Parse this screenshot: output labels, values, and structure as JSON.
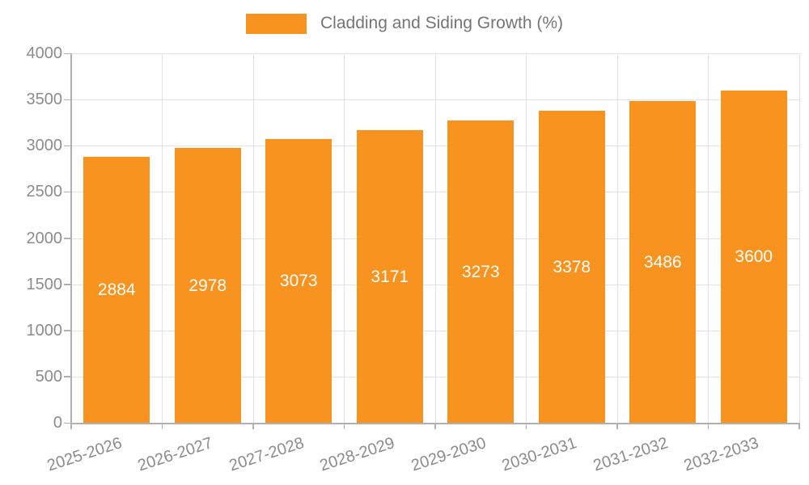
{
  "chart_data": {
    "type": "bar",
    "title": "Cladding and Siding Growth (%)",
    "series_name": "Cladding and Siding Growth (%)",
    "categories": [
      "2025-2026",
      "2026-2027",
      "2027-2028",
      "2028-2029",
      "2029-2030",
      "2030-2031",
      "2031-2032",
      "2032-2033"
    ],
    "values": [
      2884,
      2978,
      3073,
      3171,
      3273,
      3378,
      3486,
      3600
    ],
    "value_labels": [
      "2884",
      "2978",
      "3073",
      "3171",
      "3273",
      "3378",
      "3486",
      "3600"
    ],
    "xlabel": "",
    "ylabel": "",
    "ylim": [
      0,
      4000
    ],
    "yticks": [
      0,
      500,
      1000,
      1500,
      2000,
      2500,
      3000,
      3500,
      4000
    ],
    "ytick_labels": [
      "0",
      "500",
      "1000",
      "1500",
      "2000",
      "2500",
      "3000",
      "3500",
      "4000"
    ],
    "grid": true,
    "legend_position": "top-center",
    "x_label_rotation_deg": -18,
    "colors": {
      "bar": "#F7931E",
      "value_label": "#FFFFFF",
      "axis_label": "#8C8C8C",
      "legend_text": "#757575",
      "grid_line": "#E3E3E3",
      "axis_line": "#B0B0B0",
      "background": "#FFFFFF"
    }
  }
}
